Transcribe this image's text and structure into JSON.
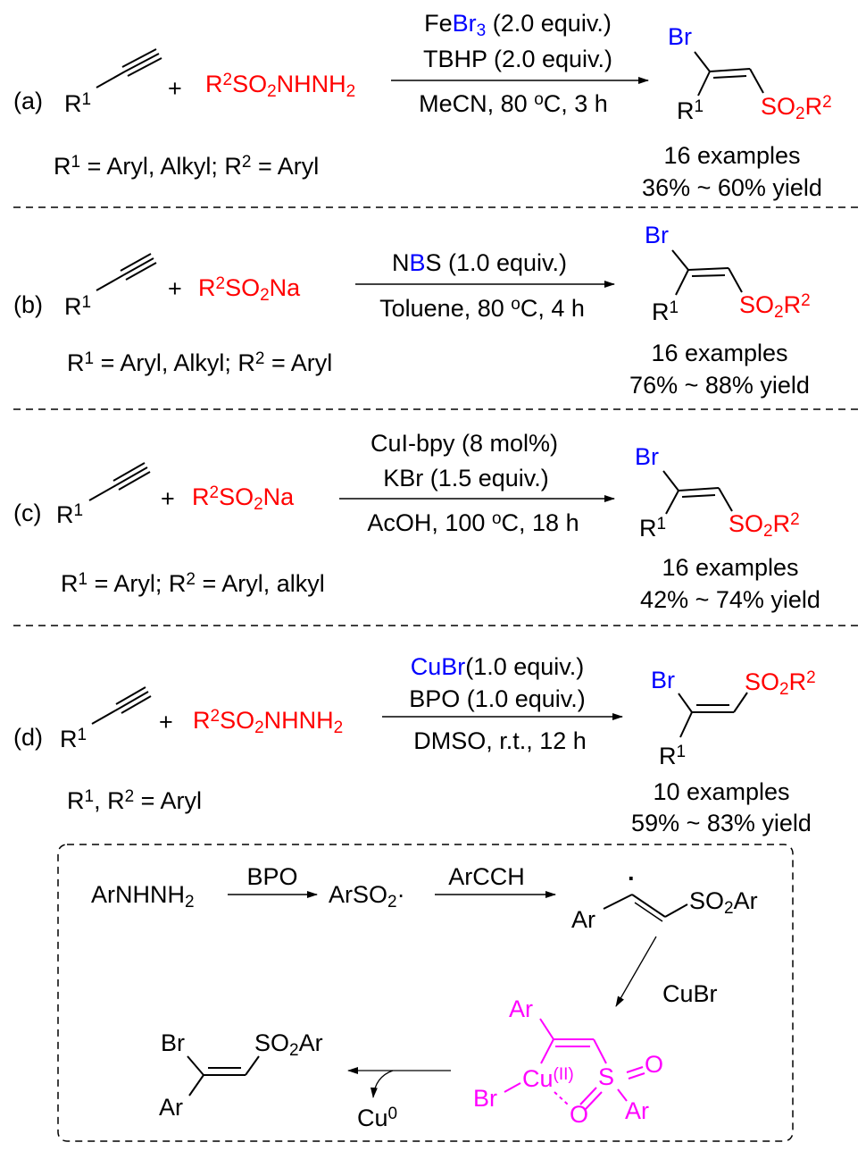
{
  "colors": {
    "red": "#ff0000",
    "blue": "#0000ff",
    "magenta": "#ff00ff",
    "black": "#000000"
  },
  "panels": [
    {
      "label": [
        [
          "(a)"
        ]
      ],
      "alkyne_r": [
        [
          "R"
        ],
        [
          "1",
          null,
          "sup"
        ]
      ],
      "plus": [
        [
          "+"
        ]
      ],
      "reagent": [
        [
          "R",
          "red"
        ],
        [
          "2",
          "red",
          "sup"
        ],
        [
          "SO",
          "red"
        ],
        [
          "2",
          "red",
          "sub"
        ],
        [
          "NHNH",
          "red"
        ],
        [
          "2",
          "red",
          "sub"
        ]
      ],
      "conditions_above": [
        [
          [
            "Fe"
          ],
          [
            "Br",
            "blue"
          ],
          [
            "3",
            "blue",
            "sub"
          ],
          [
            " (2.0 equiv.)"
          ]
        ],
        [
          [
            "TBHP (2.0 equiv.)"
          ]
        ]
      ],
      "conditions_below": [
        [
          [
            "MeCN, 80 "
          ],
          [
            "o",
            null,
            "sup"
          ],
          [
            "C, 3 h"
          ]
        ]
      ],
      "product_br": [
        [
          "Br",
          "blue"
        ]
      ],
      "product_r": [
        [
          "R"
        ],
        [
          "1",
          null,
          "sup"
        ]
      ],
      "product_so2": [
        [
          "SO",
          "red"
        ],
        [
          "2",
          "red",
          "sub"
        ],
        [
          "R",
          "red"
        ],
        [
          "2",
          "red",
          "sup"
        ]
      ],
      "scope": [
        [
          "R"
        ],
        [
          "1",
          null,
          "sup"
        ],
        [
          " = Aryl, Alkyl; R"
        ],
        [
          "2",
          null,
          "sup"
        ],
        [
          " = Aryl"
        ]
      ],
      "examples": [
        [
          "16 examples"
        ]
      ],
      "yield": [
        [
          "36% ~ 60% yield"
        ]
      ]
    },
    {
      "label": [
        [
          "(b)"
        ]
      ],
      "alkyne_r": [
        [
          "R"
        ],
        [
          "1",
          null,
          "sup"
        ]
      ],
      "plus": [
        [
          "+"
        ]
      ],
      "reagent": [
        [
          "R",
          "red"
        ],
        [
          "2",
          "red",
          "sup"
        ],
        [
          "SO",
          "red"
        ],
        [
          "2",
          "red",
          "sub"
        ],
        [
          "Na",
          "red"
        ]
      ],
      "conditions_above": [
        [
          [
            "N"
          ],
          [
            "B",
            "blue"
          ],
          [
            "S (1.0 equiv.)"
          ]
        ]
      ],
      "conditions_below": [
        [
          [
            "Toluene, 80 "
          ],
          [
            "o",
            null,
            "sup"
          ],
          [
            "C, 4 h"
          ]
        ]
      ],
      "product_br": [
        [
          "Br",
          "blue"
        ]
      ],
      "product_r": [
        [
          "R"
        ],
        [
          "1",
          null,
          "sup"
        ]
      ],
      "product_so2": [
        [
          "SO",
          "red"
        ],
        [
          "2",
          "red",
          "sub"
        ],
        [
          "R",
          "red"
        ],
        [
          "2",
          "red",
          "sup"
        ]
      ],
      "scope": [
        [
          "R"
        ],
        [
          "1",
          null,
          "sup"
        ],
        [
          " = Aryl, Alkyl; R"
        ],
        [
          "2",
          null,
          "sup"
        ],
        [
          " = Aryl"
        ]
      ],
      "examples": [
        [
          "16 examples"
        ]
      ],
      "yield": [
        [
          "76% ~ 88% yield"
        ]
      ]
    },
    {
      "label": [
        [
          "(c)"
        ]
      ],
      "alkyne_r": [
        [
          "R"
        ],
        [
          "1",
          null,
          "sup"
        ]
      ],
      "plus": [
        [
          "+"
        ]
      ],
      "reagent": [
        [
          "R",
          "red"
        ],
        [
          "2",
          "red",
          "sup"
        ],
        [
          "SO",
          "red"
        ],
        [
          "2",
          "red",
          "sub"
        ],
        [
          "Na",
          "red"
        ]
      ],
      "conditions_above": [
        [
          [
            "CuI-bpy (8 mol%)"
          ]
        ],
        [
          [
            "KBr (1.5 equiv.)"
          ]
        ]
      ],
      "conditions_below": [
        [
          [
            "AcOH, 100 "
          ],
          [
            "o",
            null,
            "sup"
          ],
          [
            "C, 18 h"
          ]
        ]
      ],
      "product_br": [
        [
          "Br",
          "blue"
        ]
      ],
      "product_r": [
        [
          "R"
        ],
        [
          "1",
          null,
          "sup"
        ]
      ],
      "product_so2": [
        [
          "SO",
          "red"
        ],
        [
          "2",
          "red",
          "sub"
        ],
        [
          "R",
          "red"
        ],
        [
          "2",
          "red",
          "sup"
        ]
      ],
      "scope": [
        [
          "R"
        ],
        [
          "1",
          null,
          "sup"
        ],
        [
          " = Aryl; R"
        ],
        [
          "2",
          null,
          "sup"
        ],
        [
          " = Aryl, alkyl"
        ]
      ],
      "examples": [
        [
          "16 examples"
        ]
      ],
      "yield": [
        [
          "42% ~ 74% yield"
        ]
      ]
    },
    {
      "label": [
        [
          "(d)"
        ]
      ],
      "alkyne_r": [
        [
          "R"
        ],
        [
          "1",
          null,
          "sup"
        ]
      ],
      "plus": [
        [
          "+"
        ]
      ],
      "reagent": [
        [
          "R",
          "red"
        ],
        [
          "2",
          "red",
          "sup"
        ],
        [
          "SO",
          "red"
        ],
        [
          "2",
          "red",
          "sub"
        ],
        [
          "NHNH",
          "red"
        ],
        [
          "2",
          "red",
          "sub"
        ]
      ],
      "conditions_above": [
        [
          [
            "CuBr",
            "blue"
          ],
          [
            "(1.0 equiv.)"
          ]
        ],
        [
          [
            "BPO (1.0 equiv.)"
          ]
        ]
      ],
      "conditions_below": [
        [
          [
            "DMSO, r.t., 12 h"
          ]
        ]
      ],
      "product_br": [
        [
          "Br",
          "blue"
        ]
      ],
      "product_r": [
        [
          "R"
        ],
        [
          "1",
          null,
          "sup"
        ]
      ],
      "product_so2": [
        [
          "SO",
          "red"
        ],
        [
          "2",
          "red",
          "sub"
        ],
        [
          "R",
          "red"
        ],
        [
          "2",
          "red",
          "sup"
        ]
      ],
      "scope": [
        [
          "R"
        ],
        [
          "1",
          null,
          "sup"
        ],
        [
          ", R"
        ],
        [
          "2",
          null,
          "sup"
        ],
        [
          " = Aryl"
        ]
      ],
      "examples": [
        [
          "10 examples"
        ]
      ],
      "yield": [
        [
          "59% ~ 83% yield"
        ]
      ]
    }
  ],
  "mechanism": {
    "start": [
      [
        "ArNHNH"
      ],
      [
        "2",
        null,
        "sub"
      ]
    ],
    "step1_reagent": [
      [
        "BPO"
      ]
    ],
    "radical": [
      [
        "ArSO"
      ],
      [
        "2",
        null,
        "sub"
      ],
      [
        "·"
      ]
    ],
    "step2_reagent": [
      [
        "ArCCH"
      ]
    ],
    "vinyl_ar": [
      [
        "Ar"
      ]
    ],
    "vinyl_dot": [
      [
        "·"
      ]
    ],
    "vinyl_so2ar": [
      [
        "SO"
      ],
      [
        "2",
        null,
        "sub"
      ],
      [
        "Ar"
      ]
    ],
    "step3_reagent": [
      [
        "CuBr"
      ]
    ],
    "complex_ar_top": [
      [
        "Ar",
        "magenta"
      ]
    ],
    "complex_cu": [
      [
        "Cu",
        "magenta"
      ],
      [
        "(II)",
        "magenta",
        "sup"
      ]
    ],
    "complex_s": [
      [
        "S",
        "magenta"
      ]
    ],
    "complex_o_right": [
      [
        "O",
        "magenta"
      ]
    ],
    "complex_o_bottom": [
      [
        "O",
        "magenta"
      ]
    ],
    "complex_ar_s": [
      [
        "Ar",
        "magenta"
      ]
    ],
    "complex_br": [
      [
        "Br",
        "magenta"
      ]
    ],
    "byproduct": [
      [
        "Cu"
      ],
      [
        "0",
        null,
        "sup"
      ]
    ],
    "product_br": [
      [
        "Br"
      ]
    ],
    "product_so2ar": [
      [
        "SO"
      ],
      [
        "2",
        null,
        "sub"
      ],
      [
        "Ar"
      ]
    ],
    "product_ar": [
      [
        "Ar"
      ]
    ]
  }
}
